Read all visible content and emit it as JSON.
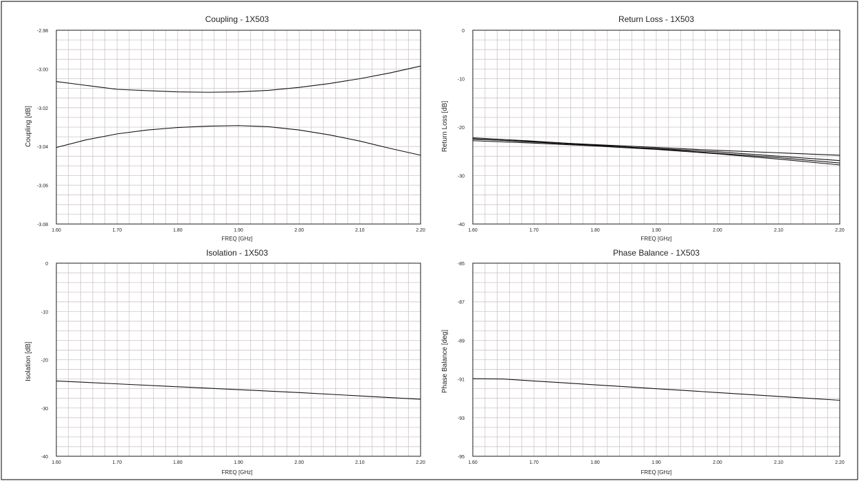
{
  "chart_data": [
    {
      "type": "line",
      "title": "Coupling - 1X503",
      "xlabel": "FREQ [GHz]",
      "ylabel": "Coupling [dB]",
      "xlim": [
        1.6,
        2.2
      ],
      "ylim": [
        -3.08,
        -2.98
      ],
      "xticks": [
        1.6,
        1.7,
        1.8,
        1.9,
        2.0,
        2.1,
        2.2
      ],
      "xtick_labels": [
        "1.60",
        "1.70",
        "1.80",
        "1.90",
        "2.00",
        "2.10",
        "2.20"
      ],
      "yticks": [
        -2.98,
        -3.0,
        -3.02,
        -3.04,
        -3.06,
        -3.08
      ],
      "ytick_labels": [
        "-2.98",
        "-3.00",
        "-3.02",
        "-3.04",
        "-3.06",
        "-3.08"
      ],
      "grid": true,
      "series": [
        {
          "x": [
            1.6,
            1.65,
            1.7,
            1.75,
            1.8,
            1.85,
            1.9,
            1.95,
            2.0,
            2.05,
            2.1,
            2.15,
            2.2
          ],
          "values": [
            -3.0065,
            -3.0085,
            -3.0105,
            -3.0112,
            -3.0118,
            -3.012,
            -3.0118,
            -3.011,
            -3.0095,
            -3.0075,
            -3.005,
            -3.002,
            -2.9985
          ]
        },
        {
          "x": [
            1.6,
            1.65,
            1.7,
            1.75,
            1.8,
            1.85,
            1.9,
            1.95,
            2.0,
            2.05,
            2.1,
            2.15,
            2.2
          ],
          "values": [
            -3.0405,
            -3.0365,
            -3.0335,
            -3.0315,
            -3.0302,
            -3.0295,
            -3.0292,
            -3.0298,
            -3.0315,
            -3.034,
            -3.0372,
            -3.041,
            -3.0445
          ]
        }
      ]
    },
    {
      "type": "line",
      "title": "Return Loss - 1X503",
      "xlabel": "FREQ [GHz]",
      "ylabel": "Return Loss [dB]",
      "xlim": [
        1.6,
        2.2
      ],
      "ylim": [
        -40,
        0
      ],
      "xticks": [
        1.6,
        1.7,
        1.8,
        1.9,
        2.0,
        2.1,
        2.2
      ],
      "xtick_labels": [
        "1.60",
        "1.70",
        "1.80",
        "1.90",
        "2.00",
        "2.10",
        "2.20"
      ],
      "yticks": [
        0,
        -10,
        -20,
        -30,
        -40
      ],
      "ytick_labels": [
        "0",
        "-10",
        "-20",
        "-30",
        "-40"
      ],
      "grid": true,
      "series": [
        {
          "x": [
            1.6,
            1.7,
            1.8,
            1.9,
            2.0,
            2.1,
            2.2
          ],
          "values": [
            -22.5,
            -23.0,
            -23.6,
            -24.2,
            -24.8,
            -25.3,
            -25.8
          ]
        },
        {
          "x": [
            1.6,
            1.7,
            1.8,
            1.9,
            2.0,
            2.1,
            2.2
          ],
          "values": [
            -22.2,
            -22.9,
            -23.7,
            -24.5,
            -25.4,
            -26.3,
            -27.4
          ]
        },
        {
          "x": [
            1.6,
            1.7,
            1.8,
            1.9,
            2.0,
            2.1,
            2.2
          ],
          "values": [
            -22.8,
            -23.3,
            -23.9,
            -24.6,
            -25.5,
            -26.6,
            -27.8
          ]
        },
        {
          "x": [
            1.6,
            1.7,
            1.8,
            1.9,
            2.0,
            2.1,
            2.2
          ],
          "values": [
            -22.4,
            -23.1,
            -23.8,
            -24.4,
            -25.1,
            -26.0,
            -26.9
          ]
        }
      ]
    },
    {
      "type": "line",
      "title": "Isolation - 1X503",
      "xlabel": "FREQ [GHz]",
      "ylabel": "Isolation [dB]",
      "xlim": [
        1.6,
        2.2
      ],
      "ylim": [
        -40,
        0
      ],
      "xticks": [
        1.6,
        1.7,
        1.8,
        1.9,
        2.0,
        2.1,
        2.2
      ],
      "xtick_labels": [
        "1.60",
        "1.70",
        "1.80",
        "1.90",
        "2.00",
        "2.10",
        "2.20"
      ],
      "yticks": [
        0,
        -10,
        -20,
        -30,
        -40
      ],
      "ytick_labels": [
        "0",
        "-10",
        "-20",
        "-30",
        "-40"
      ],
      "grid": true,
      "series": [
        {
          "x": [
            1.6,
            1.7,
            1.8,
            1.9,
            2.0,
            2.1,
            2.2
          ],
          "values": [
            -24.4,
            -25.0,
            -25.6,
            -26.2,
            -26.8,
            -27.5,
            -28.2
          ]
        }
      ]
    },
    {
      "type": "line",
      "title": "Phase Balance - 1X503",
      "xlabel": "FREQ [GHz]",
      "ylabel": "Phase Balance [deg]",
      "xlim": [
        1.6,
        2.2
      ],
      "ylim": [
        -95,
        -85
      ],
      "xticks": [
        1.6,
        1.7,
        1.8,
        1.9,
        2.0,
        2.1,
        2.2
      ],
      "xtick_labels": [
        "1.60",
        "1.70",
        "1.80",
        "1.90",
        "2.00",
        "2.10",
        "2.20"
      ],
      "yticks": [
        -85,
        -87,
        -89,
        -91,
        -93,
        -95
      ],
      "ytick_labels": [
        "-85",
        "-87",
        "-89",
        "-91",
        "-93",
        "-95"
      ],
      "grid": true,
      "series": [
        {
          "x": [
            1.6,
            1.65,
            1.7,
            1.75,
            1.8,
            1.85,
            1.9,
            1.95,
            2.0,
            2.05,
            2.1,
            2.15,
            2.2
          ],
          "values": [
            -90.98,
            -91.0,
            -91.1,
            -91.2,
            -91.3,
            -91.4,
            -91.5,
            -91.6,
            -91.7,
            -91.8,
            -91.9,
            -92.0,
            -92.1
          ]
        }
      ]
    }
  ]
}
